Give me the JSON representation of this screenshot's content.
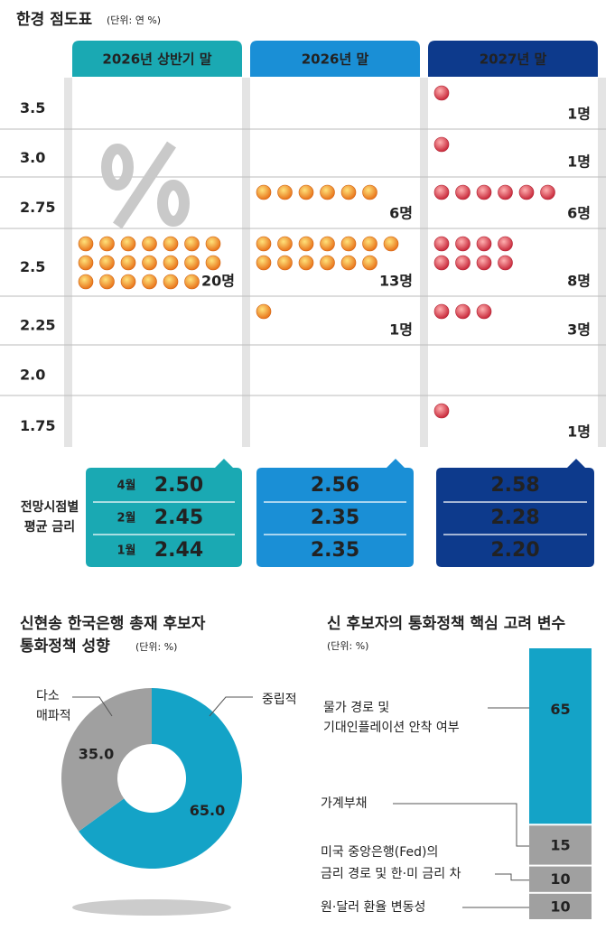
{
  "header": {
    "title": "한경 점도표",
    "unit": "(단위: 연 %)"
  },
  "chart_data": [
    {
      "type": "dot",
      "categories": [
        "3.5",
        "3.0",
        "2.75",
        "2.5",
        "2.25",
        "2.0",
        "1.75"
      ],
      "series": [
        {
          "name": "2026년 상반기 말",
          "color": "#f08a1c",
          "values": [
            0,
            0,
            0,
            20,
            0,
            0,
            0
          ],
          "value_labels": [
            null,
            null,
            null,
            "20명",
            null,
            null,
            null
          ]
        },
        {
          "name": "2026년 말",
          "color": "#f08a1c",
          "values": [
            0,
            0,
            6,
            13,
            1,
            0,
            0
          ],
          "value_labels": [
            null,
            null,
            "6명",
            "13명",
            "1명",
            null,
            null
          ]
        },
        {
          "name": "2027년 말",
          "color": "#e0454a",
          "values": [
            1,
            1,
            6,
            8,
            3,
            0,
            1
          ],
          "value_labels": [
            "1명",
            "1명",
            "6명",
            "8명",
            "3명",
            null,
            "1명"
          ]
        }
      ]
    },
    {
      "type": "pie",
      "title": [
        "신현송 한국은행 총재 후보자",
        "통화정책 성향"
      ],
      "unit": "(단위: %)",
      "categories": [
        [
          "중립적"
        ],
        [
          "다소",
          "매파적"
        ]
      ],
      "values": [
        65.0,
        35.0
      ],
      "value_labels": [
        "65.0",
        "35.0"
      ],
      "colors": [
        "#14a3c7",
        "#a0a0a0"
      ]
    },
    {
      "type": "stacked_bar",
      "title": "신 후보자의 통화정책 핵심 고려 변수",
      "unit": "(단위: %)",
      "categories": [
        [
          "물가 경로 및",
          "기대인플레이션 안착 여부"
        ],
        [
          "가계부채"
        ],
        [
          "미국 중앙은행(Fed)의",
          "금리 경로 및 한·미 금리 차"
        ],
        [
          "원·달러 환율 변동성"
        ]
      ],
      "values": [
        65,
        15,
        10,
        10
      ],
      "colors": [
        "#14a3c7",
        "#a0a0a0",
        "#a0a0a0",
        "#a0a0a0"
      ],
      "ylim": [
        0,
        100
      ]
    }
  ],
  "forecast_table": {
    "label": [
      "전망시점별",
      "평균 금리"
    ],
    "row_labels": [
      "4월",
      "2월",
      "1월"
    ],
    "columns": [
      [
        "2.50",
        "2.45",
        "2.44"
      ],
      [
        "2.56",
        "2.35",
        "2.35"
      ],
      [
        "2.58",
        "2.28",
        "2.20"
      ]
    ],
    "colors": [
      "#1aa9b3",
      "#1a8fd6",
      "#0d3a8c"
    ]
  }
}
